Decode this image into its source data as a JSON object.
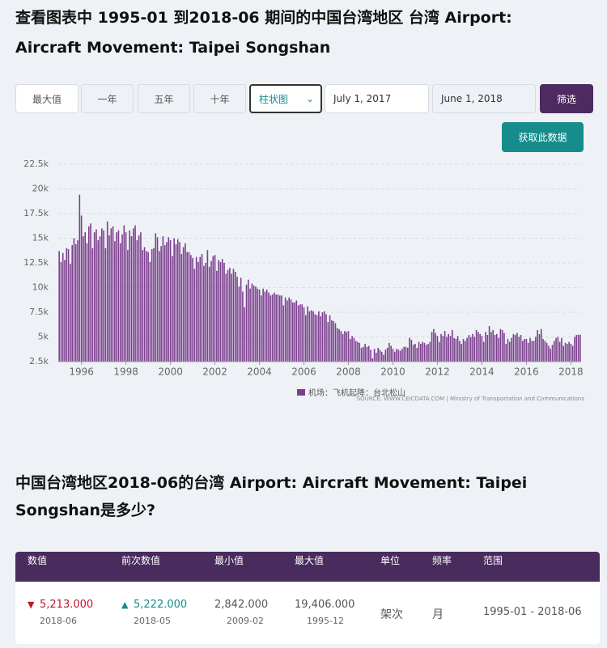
{
  "title": "查看图表中 1995-01 到2018-06 期间的中国台湾地区 台湾 Airport: Aircraft Movement: Taipei Songshan",
  "controls": {
    "buttons": [
      "最大值",
      "一年",
      "五年",
      "十年"
    ],
    "chart_type": "柱状图",
    "start_date": "July 1, 2017",
    "end_date": "June 1, 2018",
    "filter": "筛选",
    "get_data": "获取此数据"
  },
  "chart_data": {
    "type": "bar",
    "legend": "机场：飞机起降：台北松山",
    "source": "SOURCE: WWW.CEICDATA.COM | Ministry of Transportation and Communications",
    "color": "#7c3f8e",
    "grid": true,
    "ylim": [
      2500,
      22500
    ],
    "yticks": [
      {
        "value": 2500,
        "label": "2.5k"
      },
      {
        "value": 5000,
        "label": "5k"
      },
      {
        "value": 7500,
        "label": "7.5k"
      },
      {
        "value": 10000,
        "label": "10k"
      },
      {
        "value": 12500,
        "label": "12.5k"
      },
      {
        "value": 15000,
        "label": "15k"
      },
      {
        "value": 17500,
        "label": "17.5k"
      },
      {
        "value": 20000,
        "label": "20k"
      },
      {
        "value": 22500,
        "label": "22.5k"
      }
    ],
    "xticks": [
      {
        "value": "1996-01",
        "label": "1996"
      },
      {
        "value": "1998-01",
        "label": "1998"
      },
      {
        "value": "2000-01",
        "label": "2000"
      },
      {
        "value": "2002-01",
        "label": "2002"
      },
      {
        "value": "2004-01",
        "label": "2004"
      },
      {
        "value": "2006-01",
        "label": "2006"
      },
      {
        "value": "2008-01",
        "label": "2008"
      },
      {
        "value": "2010-01",
        "label": "2010"
      },
      {
        "value": "2012-01",
        "label": "2012"
      },
      {
        "value": "2014-01",
        "label": "2014"
      },
      {
        "value": "2016-01",
        "label": "2016"
      },
      {
        "value": "2018-01",
        "label": "2018"
      }
    ],
    "x": [
      "1995-01",
      "1995-02",
      "1995-03",
      "1995-04",
      "1995-05",
      "1995-06",
      "1995-07",
      "1995-08",
      "1995-09",
      "1995-10",
      "1995-11",
      "1995-12",
      "1996-01",
      "1996-02",
      "1996-03",
      "1996-04",
      "1996-05",
      "1996-06",
      "1996-07",
      "1996-08",
      "1996-09",
      "1996-10",
      "1996-11",
      "1996-12",
      "1997-01",
      "1997-02",
      "1997-03",
      "1997-04",
      "1997-05",
      "1997-06",
      "1997-07",
      "1997-08",
      "1997-09",
      "1997-10",
      "1997-11",
      "1997-12",
      "1998-01",
      "1998-02",
      "1998-03",
      "1998-04",
      "1998-05",
      "1998-06",
      "1998-07",
      "1998-08",
      "1998-09",
      "1998-10",
      "1998-11",
      "1998-12",
      "1999-01",
      "1999-02",
      "1999-03",
      "1999-04",
      "1999-05",
      "1999-06",
      "1999-07",
      "1999-08",
      "1999-09",
      "1999-10",
      "1999-11",
      "1999-12",
      "2000-01",
      "2000-02",
      "2000-03",
      "2000-04",
      "2000-05",
      "2000-06",
      "2000-07",
      "2000-08",
      "2000-09",
      "2000-10",
      "2000-11",
      "2000-12",
      "2001-01",
      "2001-02",
      "2001-03",
      "2001-04",
      "2001-05",
      "2001-06",
      "2001-07",
      "2001-08",
      "2001-09",
      "2001-10",
      "2001-11",
      "2001-12",
      "2002-01",
      "2002-02",
      "2002-03",
      "2002-04",
      "2002-05",
      "2002-06",
      "2002-07",
      "2002-08",
      "2002-09",
      "2002-10",
      "2002-11",
      "2002-12",
      "2003-01",
      "2003-02",
      "2003-03",
      "2003-04",
      "2003-05",
      "2003-06",
      "2003-07",
      "2003-08",
      "2003-09",
      "2003-10",
      "2003-11",
      "2003-12",
      "2004-01",
      "2004-02",
      "2004-03",
      "2004-04",
      "2004-05",
      "2004-06",
      "2004-07",
      "2004-08",
      "2004-09",
      "2004-10",
      "2004-11",
      "2004-12",
      "2005-01",
      "2005-02",
      "2005-03",
      "2005-04",
      "2005-05",
      "2005-06",
      "2005-07",
      "2005-08",
      "2005-09",
      "2005-10",
      "2005-11",
      "2005-12",
      "2006-01",
      "2006-02",
      "2006-03",
      "2006-04",
      "2006-05",
      "2006-06",
      "2006-07",
      "2006-08",
      "2006-09",
      "2006-10",
      "2006-11",
      "2006-12",
      "2007-01",
      "2007-02",
      "2007-03",
      "2007-04",
      "2007-05",
      "2007-06",
      "2007-07",
      "2007-08",
      "2007-09",
      "2007-10",
      "2007-11",
      "2007-12",
      "2008-01",
      "2008-02",
      "2008-03",
      "2008-04",
      "2008-05",
      "2008-06",
      "2008-07",
      "2008-08",
      "2008-09",
      "2008-10",
      "2008-11",
      "2008-12",
      "2009-01",
      "2009-02",
      "2009-03",
      "2009-04",
      "2009-05",
      "2009-06",
      "2009-07",
      "2009-08",
      "2009-09",
      "2009-10",
      "2009-11",
      "2009-12",
      "2010-01",
      "2010-02",
      "2010-03",
      "2010-04",
      "2010-05",
      "2010-06",
      "2010-07",
      "2010-08",
      "2010-09",
      "2010-10",
      "2010-11",
      "2010-12",
      "2011-01",
      "2011-02",
      "2011-03",
      "2011-04",
      "2011-05",
      "2011-06",
      "2011-07",
      "2011-08",
      "2011-09",
      "2011-10",
      "2011-11",
      "2011-12",
      "2012-01",
      "2012-02",
      "2012-03",
      "2012-04",
      "2012-05",
      "2012-06",
      "2012-07",
      "2012-08",
      "2012-09",
      "2012-10",
      "2012-11",
      "2012-12",
      "2013-01",
      "2013-02",
      "2013-03",
      "2013-04",
      "2013-05",
      "2013-06",
      "2013-07",
      "2013-08",
      "2013-09",
      "2013-10",
      "2013-11",
      "2013-12",
      "2014-01",
      "2014-02",
      "2014-03",
      "2014-04",
      "2014-05",
      "2014-06",
      "2014-07",
      "2014-08",
      "2014-09",
      "2014-10",
      "2014-11",
      "2014-12",
      "2015-01",
      "2015-02",
      "2015-03",
      "2015-04",
      "2015-05",
      "2015-06",
      "2015-07",
      "2015-08",
      "2015-09",
      "2015-10",
      "2015-11",
      "2015-12",
      "2016-01",
      "2016-02",
      "2016-03",
      "2016-04",
      "2016-05",
      "2016-06",
      "2016-07",
      "2016-08",
      "2016-09",
      "2016-10",
      "2016-11",
      "2016-12",
      "2017-01",
      "2017-02",
      "2017-03",
      "2017-04",
      "2017-05",
      "2017-06",
      "2017-07",
      "2017-08",
      "2017-09",
      "2017-10",
      "2017-11",
      "2017-12",
      "2018-01",
      "2018-02",
      "2018-03",
      "2018-04",
      "2018-05",
      "2018-06"
    ],
    "values": [
      13700,
      12600,
      13500,
      12800,
      14000,
      13900,
      12400,
      14300,
      15000,
      14400,
      14800,
      19406,
      17300,
      15200,
      15600,
      14500,
      16200,
      16500,
      14000,
      15600,
      15900,
      14800,
      15200,
      16000,
      15800,
      14000,
      16700,
      15300,
      16000,
      16200,
      14700,
      15600,
      15800,
      14500,
      15400,
      16300,
      15600,
      13800,
      15800,
      15200,
      16000,
      16300,
      14800,
      15300,
      15600,
      13800,
      14100,
      13700,
      13600,
      12600,
      13900,
      14000,
      15500,
      15100,
      13700,
      14200,
      15200,
      14300,
      14600,
      15100,
      14800,
      13200,
      15000,
      14400,
      14900,
      14600,
      13400,
      14100,
      14500,
      13600,
      13600,
      13300,
      13000,
      11900,
      13100,
      12600,
      13100,
      13400,
      12200,
      12500,
      13800,
      12100,
      12700,
      13200,
      13300,
      11700,
      12800,
      12600,
      12900,
      12500,
      11400,
      11800,
      12000,
      11400,
      11900,
      11600,
      11100,
      10100,
      11000,
      9600,
      8000,
      10300,
      10800,
      9900,
      10400,
      10200,
      10100,
      9900,
      9800,
      9200,
      9900,
      9600,
      9800,
      9500,
      9200,
      9300,
      9500,
      9300,
      9300,
      9200,
      9200,
      8200,
      9000,
      8700,
      9000,
      8800,
      8500,
      8500,
      8700,
      8200,
      8300,
      8300,
      8000,
      7200,
      8100,
      7600,
      7700,
      7600,
      7300,
      7200,
      7600,
      7100,
      7500,
      7600,
      7300,
      6500,
      7200,
      6700,
      6600,
      6400,
      5900,
      5800,
      5600,
      5300,
      5600,
      5500,
      5600,
      4800,
      5100,
      4900,
      4600,
      4500,
      4400,
      3900,
      4000,
      4300,
      4000,
      4100,
      3700,
      2842,
      3800,
      3400,
      3900,
      3700,
      3500,
      3200,
      3700,
      3900,
      4400,
      4100,
      3800,
      3500,
      3800,
      3700,
      3600,
      3800,
      4000,
      4000,
      3900,
      4900,
      4700,
      4200,
      4300,
      3900,
      4500,
      4300,
      4500,
      4400,
      4200,
      4300,
      4500,
      5500,
      5800,
      5400,
      5100,
      4500,
      5300,
      5100,
      5600,
      5000,
      5300,
      5100,
      5700,
      4900,
      4800,
      5100,
      4600,
      4300,
      4800,
      4600,
      4900,
      5200,
      5000,
      5300,
      5000,
      5700,
      5500,
      5300,
      5100,
      4500,
      5500,
      5200,
      6100,
      5500,
      5700,
      5200,
      5300,
      4900,
      5800,
      5700,
      5400,
      4300,
      4800,
      4500,
      4900,
      5300,
      5200,
      5400,
      5000,
      5200,
      4600,
      4800,
      4800,
      4400,
      4900,
      4600,
      4600,
      5000,
      5700,
      5300,
      5800,
      4800,
      4600,
      4400,
      4100,
      3800,
      4200,
      4600,
      4900,
      5000,
      4500,
      4900,
      4100,
      4400,
      4300,
      4500,
      4300,
      4100,
      5000,
      5200,
      5222,
      5213
    ]
  },
  "question": "中国台湾地区2018-06的台湾 Airport: Aircraft Movement: Taipei Songshan是多少?",
  "table": {
    "headers": [
      "数值",
      "前次数值",
      "最小值",
      "最大值",
      "单位",
      "频率",
      "范围"
    ],
    "rows": [
      [
        {
          "value": "5,213.000",
          "date": "2018-06"
        },
        {
          "value": "5,222.000",
          "date": "2018-05"
        },
        {
          "value": "2,842.000",
          "date": "2009-02"
        },
        {
          "value": "19,406.000",
          "date": "1995-12"
        },
        "架次",
        "月",
        "1995-01 - 2018-06"
      ]
    ]
  }
}
